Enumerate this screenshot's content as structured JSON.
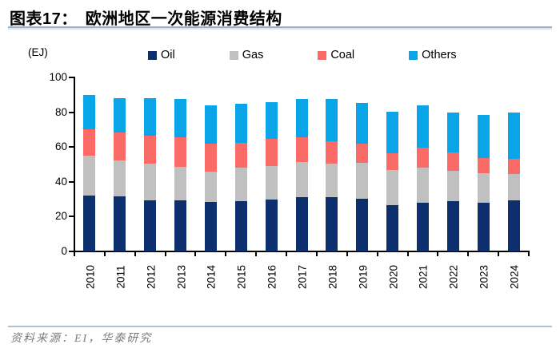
{
  "header": {
    "tag": "图表17：",
    "title": "欧洲地区一次能源消费结构"
  },
  "source": {
    "label": "资料来源：",
    "text": "EI，华泰研究"
  },
  "chart_data": {
    "type": "bar",
    "stacked": true,
    "title": "欧洲地区一次能源消费结构",
    "ylabel": "(EJ)",
    "xlabel": "",
    "ylim": [
      0,
      100
    ],
    "yticks": [
      0,
      20,
      40,
      60,
      80,
      100
    ],
    "grid": false,
    "legend_position": "top",
    "categories": [
      "2010",
      "2011",
      "2012",
      "2013",
      "2014",
      "2015",
      "2016",
      "2017",
      "2018",
      "2019",
      "2020",
      "2021",
      "2022",
      "2023",
      "2024"
    ],
    "series": [
      {
        "name": "Oil",
        "color": "#0e2f6e",
        "values": [
          32,
          31.5,
          29.5,
          29.5,
          28.5,
          29,
          30,
          31,
          31,
          30.5,
          26.5,
          28,
          29,
          28,
          29.5
        ]
      },
      {
        "name": "Gas",
        "color": "#c0c0c0",
        "values": [
          23,
          21,
          21,
          19,
          17.5,
          19,
          19,
          20.5,
          19.5,
          20.5,
          20.5,
          20,
          17.5,
          17,
          15
        ]
      },
      {
        "name": "Coal",
        "color": "#fa6a66",
        "values": [
          15,
          16,
          16,
          17,
          16,
          14.5,
          15.5,
          14,
          13,
          11,
          9.5,
          11.5,
          10.5,
          8.5,
          8.5
        ]
      },
      {
        "name": "Others",
        "color": "#0aa5e9",
        "values": [
          20,
          19.5,
          21.5,
          22,
          22,
          22.5,
          21.5,
          22,
          24,
          23.5,
          24,
          24.5,
          23,
          25,
          27
        ]
      }
    ],
    "totals": [
      90,
      88,
      88,
      87.5,
      84,
      85,
      86,
      87.5,
      87.5,
      85.5,
      80.5,
      84,
      80,
      78.5,
      80
    ]
  }
}
